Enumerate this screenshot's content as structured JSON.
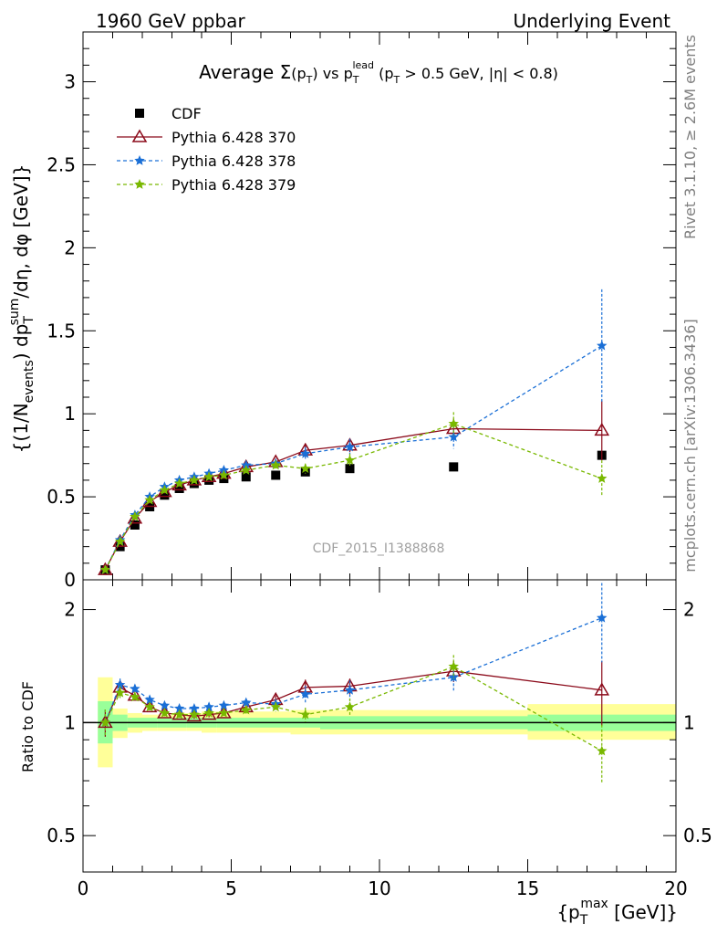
{
  "header": {
    "left": "1960 GeV ppbar",
    "right": "Underlying Event",
    "title": "Average Σ(p_T) vs p_T^lead (p_T > 0.5 GeV, |η| < 0.8)"
  },
  "side_labels": {
    "rivet": "Rivet 3.1.10, ≥ 2.6M events",
    "mcplots": "mcplots.cern.ch [arXiv:1306.3436]"
  },
  "watermark": "CDF_2015_I1388868",
  "axes": {
    "ylabel_main": "{(1/N_events) dp_T^sum/dη, dφ [GeV]}",
    "ylabel_ratio": "Ratio to CDF",
    "xlabel": "{p_T^max [GeV]}",
    "x_ticks": [
      "0",
      "5",
      "10",
      "15",
      "20"
    ],
    "y_ticks_main": [
      "0",
      "0.5",
      "1",
      "1.5",
      "2",
      "2.5",
      "3"
    ],
    "y_ticks_ratio": [
      "0.5",
      "1",
      "2"
    ]
  },
  "legend": [
    {
      "label": "CDF",
      "color": "#000000",
      "marker": "square",
      "dash": false
    },
    {
      "label": "Pythia 6.428 370",
      "color": "#8b0a1a",
      "marker": "triangle",
      "dash": false
    },
    {
      "label": "Pythia 6.428 378",
      "color": "#1a6fd6",
      "marker": "star",
      "dash": true
    },
    {
      "label": "Pythia 6.428 379",
      "color": "#79b800",
      "marker": "star",
      "dash": true
    }
  ],
  "chart_data": {
    "type": "scatter",
    "xlim": [
      0,
      20
    ],
    "ylim_main": [
      0,
      3.3
    ],
    "ylim_ratio": [
      0.4,
      2.4
    ],
    "ratio_scale": "log",
    "x": [
      0.75,
      1.25,
      1.75,
      2.25,
      2.75,
      3.25,
      3.75,
      4.25,
      4.75,
      5.5,
      6.5,
      7.5,
      9.0,
      12.5,
      17.5
    ],
    "series": [
      {
        "name": "CDF",
        "values": [
          0.06,
          0.2,
          0.33,
          0.44,
          0.51,
          0.55,
          0.58,
          0.6,
          0.61,
          0.62,
          0.63,
          0.65,
          0.67,
          0.68,
          0.75
        ]
      },
      {
        "name": "Pythia 6.428 370",
        "values": [
          0.06,
          0.23,
          0.37,
          0.47,
          0.53,
          0.57,
          0.6,
          0.62,
          0.64,
          0.68,
          0.71,
          0.78,
          0.81,
          0.91,
          0.9
        ],
        "err": [
          0.005,
          0.01,
          0.01,
          0.01,
          0.01,
          0.01,
          0.01,
          0.01,
          0.01,
          0.015,
          0.02,
          0.04,
          0.04,
          0.06,
          0.18
        ]
      },
      {
        "name": "Pythia 6.428 378",
        "values": [
          0.06,
          0.24,
          0.39,
          0.5,
          0.56,
          0.6,
          0.62,
          0.64,
          0.66,
          0.69,
          0.7,
          0.76,
          0.8,
          0.86,
          1.41
        ],
        "err": [
          0.005,
          0.01,
          0.01,
          0.01,
          0.01,
          0.01,
          0.01,
          0.01,
          0.01,
          0.015,
          0.02,
          0.04,
          0.05,
          0.07,
          0.34
        ]
      },
      {
        "name": "Pythia 6.428 379",
        "values": [
          0.06,
          0.23,
          0.38,
          0.48,
          0.54,
          0.58,
          0.6,
          0.62,
          0.63,
          0.66,
          0.69,
          0.67,
          0.72,
          0.94,
          0.61
        ],
        "err": [
          0.005,
          0.01,
          0.01,
          0.01,
          0.01,
          0.01,
          0.01,
          0.01,
          0.01,
          0.015,
          0.02,
          0.03,
          0.04,
          0.07,
          0.11
        ]
      }
    ],
    "ratio_series": [
      {
        "name": "Pythia 6.428 370",
        "values": [
          1.0,
          1.24,
          1.18,
          1.1,
          1.06,
          1.05,
          1.04,
          1.05,
          1.06,
          1.1,
          1.15,
          1.24,
          1.25,
          1.37,
          1.22
        ]
      },
      {
        "name": "Pythia 6.428 378",
        "values": [
          1.0,
          1.26,
          1.23,
          1.15,
          1.11,
          1.09,
          1.09,
          1.1,
          1.11,
          1.13,
          1.12,
          1.19,
          1.22,
          1.32,
          1.9
        ]
      },
      {
        "name": "Pythia 6.428 379",
        "values": [
          1.0,
          1.2,
          1.17,
          1.1,
          1.06,
          1.05,
          1.05,
          1.06,
          1.06,
          1.08,
          1.1,
          1.05,
          1.1,
          1.41,
          0.84
        ]
      }
    ],
    "ratio_band_inner": {
      "edges": [
        0.5,
        1.0,
        1.5,
        2.0,
        2.5,
        3.0,
        3.5,
        4.0,
        4.5,
        5.0,
        6.0,
        7.0,
        8.0,
        10.0,
        15.0,
        20.0
      ],
      "lo": [
        0.88,
        0.95,
        0.97,
        0.97,
        0.97,
        0.97,
        0.97,
        0.97,
        0.97,
        0.97,
        0.97,
        0.97,
        0.96,
        0.96,
        0.95
      ],
      "hi": [
        1.14,
        1.05,
        1.03,
        1.03,
        1.03,
        1.03,
        1.03,
        1.03,
        1.03,
        1.03,
        1.03,
        1.03,
        1.04,
        1.04,
        1.05
      ]
    },
    "ratio_band_outer": {
      "edges": [
        0.5,
        1.0,
        1.5,
        2.0,
        2.5,
        3.0,
        3.5,
        4.0,
        4.5,
        5.0,
        6.0,
        7.0,
        8.0,
        10.0,
        15.0,
        20.0
      ],
      "lo": [
        0.76,
        0.91,
        0.94,
        0.95,
        0.95,
        0.95,
        0.95,
        0.94,
        0.94,
        0.94,
        0.94,
        0.93,
        0.93,
        0.93,
        0.9
      ],
      "hi": [
        1.32,
        1.09,
        1.06,
        1.05,
        1.05,
        1.06,
        1.06,
        1.07,
        1.07,
        1.07,
        1.07,
        1.08,
        1.08,
        1.08,
        1.12
      ]
    }
  }
}
